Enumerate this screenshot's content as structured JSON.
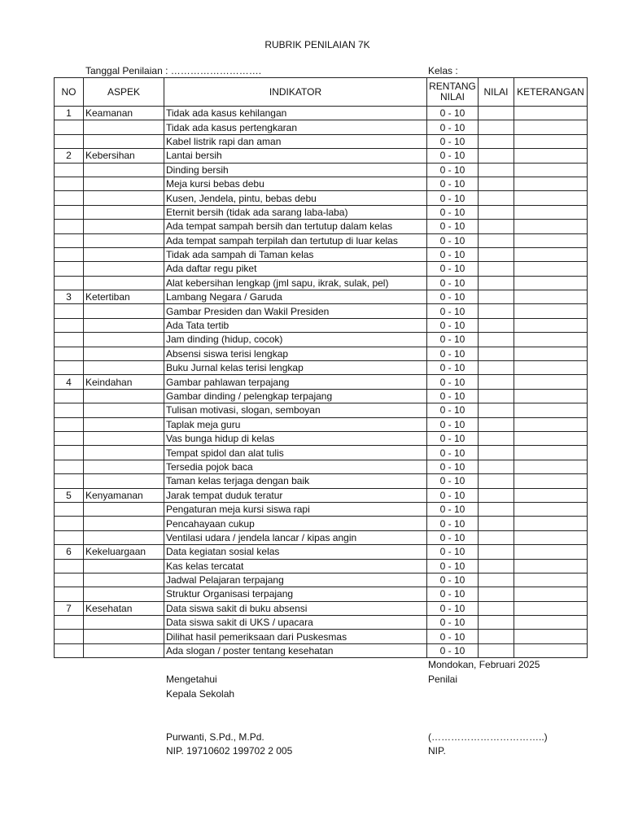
{
  "title": "RUBRIK PENILAIAN 7K",
  "date_label": "Tanggal Penilaian : ……………………….",
  "class_label": "Kelas :",
  "headers": {
    "no": "NO",
    "aspek": "ASPEK",
    "indikator": "INDIKATOR",
    "rentang_line1": "RENTANG",
    "rentang_line2": "NILAI",
    "nilai": "NILAI",
    "keterangan": "KETERANGAN"
  },
  "rows": [
    {
      "no": "1",
      "aspek": "Keamanan",
      "indikator": "Tidak ada kasus kehilangan",
      "rentang": "0 - 10"
    },
    {
      "no": "",
      "aspek": "",
      "indikator": "Tidak ada kasus pertengkaran",
      "rentang": "0 - 10"
    },
    {
      "no": "",
      "aspek": "",
      "indikator": "Kabel listrik rapi dan aman",
      "rentang": "0 - 10"
    },
    {
      "no": "2",
      "aspek": "Kebersihan",
      "indikator": "Lantai bersih",
      "rentang": "0 - 10"
    },
    {
      "no": "",
      "aspek": "",
      "indikator": "Dinding bersih",
      "rentang": "0 - 10"
    },
    {
      "no": "",
      "aspek": "",
      "indikator": "Meja kursi bebas debu",
      "rentang": "0 - 10"
    },
    {
      "no": "",
      "aspek": "",
      "indikator": "Kusen, Jendela, pintu, bebas debu",
      "rentang": "0 - 10"
    },
    {
      "no": "",
      "aspek": "",
      "indikator": "Eternit bersih (tidak ada sarang laba-laba)",
      "rentang": "0 - 10"
    },
    {
      "no": "",
      "aspek": "",
      "indikator": "Ada tempat sampah bersih dan tertutup dalam kelas",
      "rentang": "0 - 10"
    },
    {
      "no": "",
      "aspek": "",
      "indikator": "Ada tempat sampah terpilah dan tertutup di luar kelas",
      "rentang": "0 - 10"
    },
    {
      "no": "",
      "aspek": "",
      "indikator": "Tidak ada sampah di Taman kelas",
      "rentang": "0 - 10"
    },
    {
      "no": "",
      "aspek": "",
      "indikator": "Ada daftar regu piket",
      "rentang": "0 - 10"
    },
    {
      "no": "",
      "aspek": "",
      "indikator": "Alat kebersihan lengkap (jml sapu, ikrak, sulak, pel)",
      "rentang": "0 - 10"
    },
    {
      "no": "3",
      "aspek": "Ketertiban",
      "indikator": "Lambang Negara / Garuda",
      "rentang": "0 - 10"
    },
    {
      "no": "",
      "aspek": "",
      "indikator": "Gambar Presiden dan Wakil Presiden",
      "rentang": "0 - 10"
    },
    {
      "no": "",
      "aspek": "",
      "indikator": "Ada Tata tertib",
      "rentang": "0 - 10"
    },
    {
      "no": "",
      "aspek": "",
      "indikator": "Jam dinding (hidup, cocok)",
      "rentang": "0 - 10"
    },
    {
      "no": "",
      "aspek": "",
      "indikator": "Absensi siswa terisi lengkap",
      "rentang": "0 - 10"
    },
    {
      "no": "",
      "aspek": "",
      "indikator": "Buku Jurnal kelas terisi lengkap",
      "rentang": "0 - 10"
    },
    {
      "no": "4",
      "aspek": "Keindahan",
      "indikator": "Gambar pahlawan terpajang",
      "rentang": "0 - 10"
    },
    {
      "no": "",
      "aspek": "",
      "indikator": "Gambar dinding / pelengkap terpajang",
      "rentang": "0 - 10"
    },
    {
      "no": "",
      "aspek": "",
      "indikator": "Tulisan motivasi, slogan, semboyan",
      "rentang": "0 - 10"
    },
    {
      "no": "",
      "aspek": "",
      "indikator": "Taplak meja guru",
      "rentang": "0 - 10"
    },
    {
      "no": "",
      "aspek": "",
      "indikator": "Vas bunga hidup di kelas",
      "rentang": "0 - 10"
    },
    {
      "no": "",
      "aspek": "",
      "indikator": "Tempat spidol dan alat tulis",
      "rentang": "0 - 10"
    },
    {
      "no": "",
      "aspek": "",
      "indikator": "Tersedia pojok baca",
      "rentang": "0 - 10"
    },
    {
      "no": "",
      "aspek": "",
      "indikator": "Taman kelas terjaga dengan baik",
      "rentang": "0 - 10"
    },
    {
      "no": "5",
      "aspek": "Kenyamanan",
      "indikator": "Jarak tempat duduk teratur",
      "rentang": "0 - 10"
    },
    {
      "no": "",
      "aspek": "",
      "indikator": "Pengaturan meja kursi siswa rapi",
      "rentang": "0 - 10"
    },
    {
      "no": "",
      "aspek": "",
      "indikator": "Pencahayaan cukup",
      "rentang": "0 - 10"
    },
    {
      "no": "",
      "aspek": "",
      "indikator": "Ventilasi udara / jendela lancar / kipas angin",
      "rentang": "0 - 10"
    },
    {
      "no": "6",
      "aspek": "Kekeluargaan",
      "indikator": "Data kegiatan sosial kelas",
      "rentang": "0 - 10"
    },
    {
      "no": "",
      "aspek": "",
      "indikator": "Kas kelas  tercatat",
      "rentang": "0 - 10"
    },
    {
      "no": "",
      "aspek": "",
      "indikator": "Jadwal Pelajaran terpajang",
      "rentang": "0 - 10"
    },
    {
      "no": "",
      "aspek": "",
      "indikator": "Struktur Organisasi terpajang",
      "rentang": "0 - 10"
    },
    {
      "no": "7",
      "aspek": "Kesehatan",
      "indikator": "Data siswa sakit di buku absensi",
      "rentang": "0 - 10"
    },
    {
      "no": "",
      "aspek": "",
      "indikator": "Data siswa sakit di UKS / upacara",
      "rentang": "0 - 10"
    },
    {
      "no": "",
      "aspek": "",
      "indikator": "Dilihat hasil pemeriksaan dari Puskesmas",
      "rentang": "0 - 10"
    },
    {
      "no": "",
      "aspek": "",
      "indikator": "Ada slogan / poster tentang kesehatan",
      "rentang": "0 - 10"
    }
  ],
  "footer": {
    "place_date": "Mondokan, Februari 2025",
    "left_line1": "Mengetahui",
    "left_line2": "Kepala Sekolah",
    "right_role": "Penilai",
    "left_name": "Purwanti, S.Pd., M.Pd.",
    "left_nip": "NIP.  19710602 199702 2 005",
    "right_name": "(……………………………..)",
    "right_nip": "NIP."
  }
}
